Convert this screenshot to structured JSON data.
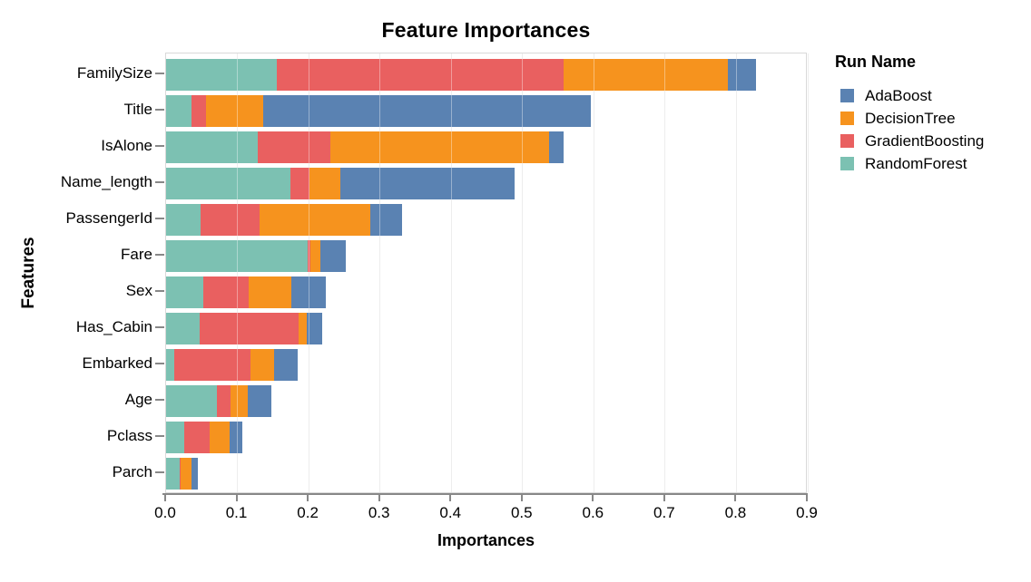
{
  "chart_data": {
    "type": "bar",
    "orientation": "horizontal",
    "stacked": true,
    "title": "Feature Importances",
    "xlabel": "Importances",
    "ylabel": "Features",
    "xlim": [
      0.0,
      0.9
    ],
    "x_ticks": [
      "0.0",
      "0.1",
      "0.2",
      "0.3",
      "0.4",
      "0.5",
      "0.6",
      "0.7",
      "0.8",
      "0.9"
    ],
    "grid": true,
    "categories": [
      "FamilySize",
      "Title",
      "IsAlone",
      "Name_length",
      "PassengerId",
      "Fare",
      "Sex",
      "Has_Cabin",
      "Embarked",
      "Age",
      "Pclass",
      "Parch"
    ],
    "stack_order": [
      "RandomForest",
      "GradientBoosting",
      "DecisionTree",
      "AdaBoost"
    ],
    "series": [
      {
        "name": "AdaBoost",
        "color": "#5a82b2",
        "values": [
          0.04,
          0.46,
          0.021,
          0.244,
          0.045,
          0.035,
          0.048,
          0.022,
          0.033,
          0.034,
          0.018,
          0.009
        ]
      },
      {
        "name": "DecisionTree",
        "color": "#f6931e",
        "values": [
          0.231,
          0.08,
          0.306,
          0.044,
          0.155,
          0.015,
          0.06,
          0.011,
          0.033,
          0.023,
          0.028,
          0.015
        ]
      },
      {
        "name": "GradientBoosting",
        "color": "#e96060",
        "values": [
          0.402,
          0.02,
          0.103,
          0.026,
          0.082,
          0.003,
          0.064,
          0.139,
          0.107,
          0.02,
          0.035,
          0.002
        ]
      },
      {
        "name": "RandomForest",
        "color": "#7cc1b2",
        "values": [
          0.155,
          0.036,
          0.128,
          0.175,
          0.049,
          0.199,
          0.052,
          0.047,
          0.011,
          0.071,
          0.026,
          0.019
        ]
      }
    ],
    "legend": {
      "title": "Run Name",
      "position": "right"
    },
    "colors": {
      "grid": "#e2e2e2",
      "axis": "#888888",
      "panel_border": "#d9d9d9",
      "text": "#000000"
    }
  }
}
